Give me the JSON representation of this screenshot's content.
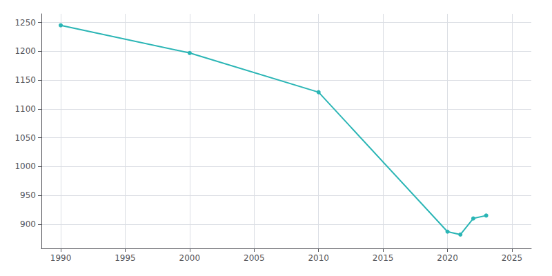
{
  "chart_data": {
    "type": "line",
    "x": [
      1990,
      2000,
      2010,
      2020,
      2021,
      2022,
      2023
    ],
    "values": [
      1245,
      1197,
      1129,
      887,
      882,
      910,
      915
    ],
    "color": "#2ab5b5",
    "marker": "circle",
    "xlim": [
      1988.5,
      2026.5
    ],
    "ylim": [
      858,
      1265
    ],
    "xticks": [
      1990,
      1995,
      2000,
      2005,
      2010,
      2015,
      2020,
      2025
    ],
    "yticks": [
      900,
      950,
      1000,
      1050,
      1100,
      1150,
      1200,
      1250
    ],
    "grid": true
  }
}
